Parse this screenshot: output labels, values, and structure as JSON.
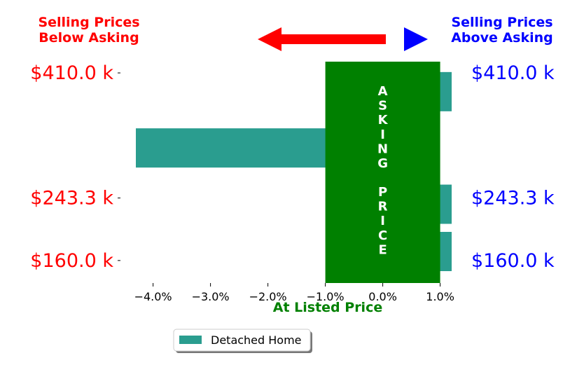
{
  "chart_data": {
    "type": "bar",
    "orientation": "horizontal",
    "header_left": {
      "lines": [
        "Selling Prices",
        "Below Asking"
      ],
      "color": "#ff0000"
    },
    "header_right": {
      "lines": [
        "Selling Prices",
        "Above Asking"
      ],
      "color": "#0000ff"
    },
    "left_tick_color": "#ff0000",
    "right_tick_color": "#0000ff",
    "y_ticks": [
      {
        "label": "$410.0 k",
        "value": 410.0
      },
      {
        "label": "$243.3 k",
        "value": 243.3
      },
      {
        "label": "$160.0 k",
        "value": 160.0
      }
    ],
    "ylim": [
      130,
      425
    ],
    "xlim": [
      -4.3,
      1.2
    ],
    "x_ticks": [
      {
        "value": -4.0,
        "label": "−4.0%"
      },
      {
        "value": -3.0,
        "label": "−3.0%"
      },
      {
        "value": -2.0,
        "label": "−2.0%"
      },
      {
        "value": -1.0,
        "label": "−1.0%"
      },
      {
        "value": 0.0,
        "label": "0.0%"
      },
      {
        "value": 1.0,
        "label": "1.0%"
      }
    ],
    "xlabel": "At Listed Price",
    "xlabel_color": "#008000",
    "asking_band": {
      "x_range": [
        -1.0,
        1.0
      ],
      "color": "#008000",
      "text_top": "ASKING",
      "text_bottom": "PRICE",
      "text_color": "#ffffff"
    },
    "series": [
      {
        "name": "Detached Home",
        "color": "#2a9d8f",
        "bars": [
          {
            "y": 385,
            "value": 1.2
          },
          {
            "y": 310,
            "value": -4.3
          },
          {
            "y": 235,
            "value": 1.2
          },
          {
            "y": 172,
            "value": 1.2
          }
        ]
      }
    ],
    "arrows": {
      "left_color": "#ff0000",
      "right_color": "#0000ff"
    },
    "legend_position": "bottom-center"
  }
}
